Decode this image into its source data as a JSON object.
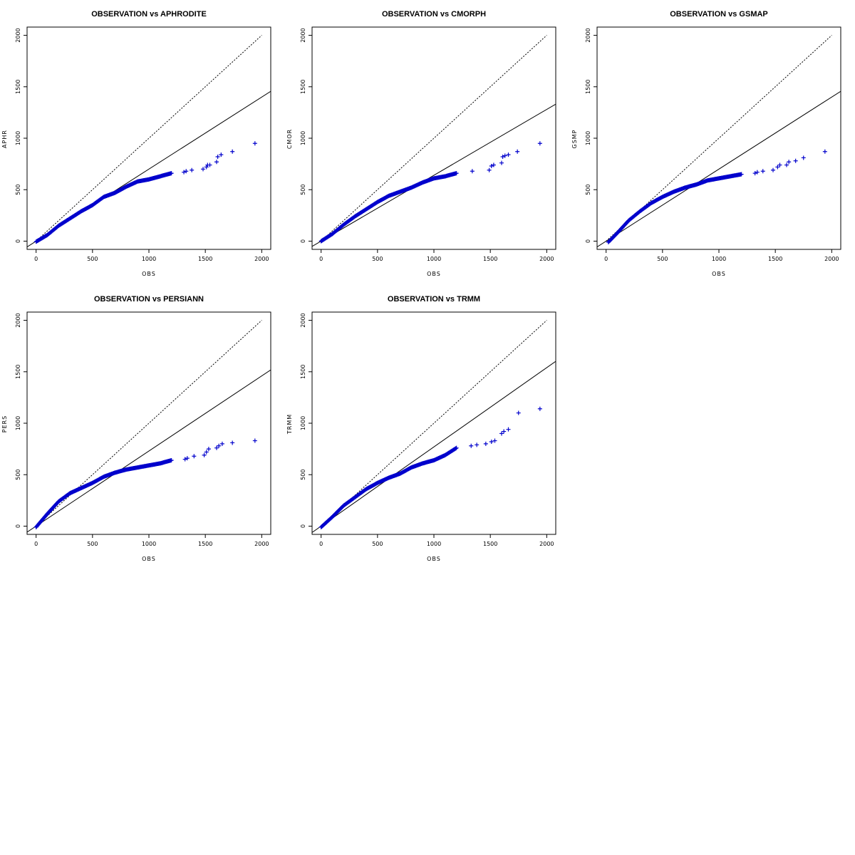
{
  "colors": {
    "points": "#0000cc",
    "lines": "#000000",
    "background": "#ffffff"
  },
  "chart_data": [
    {
      "type": "scatter",
      "title": "OBSERVATION vs APHRODITE",
      "xlabel": "OBS",
      "ylabel": "APHR",
      "xlim": [
        -80,
        2080
      ],
      "ylim": [
        -80,
        2080
      ],
      "xticks": [
        0,
        500,
        1000,
        1500,
        2000
      ],
      "yticks": [
        0,
        500,
        1000,
        1500,
        2000
      ],
      "marker": "+",
      "reference_line": {
        "style": "dotted",
        "from": [
          0,
          0
        ],
        "to": [
          2000,
          2000
        ]
      },
      "fit_line": {
        "style": "solid",
        "intercept": 0,
        "slope": 0.7
      },
      "quantile_curve": [
        [
          0,
          -5
        ],
        [
          100,
          60
        ],
        [
          200,
          150
        ],
        [
          300,
          220
        ],
        [
          400,
          290
        ],
        [
          500,
          350
        ],
        [
          600,
          430
        ],
        [
          700,
          470
        ],
        [
          800,
          530
        ],
        [
          900,
          580
        ],
        [
          1000,
          600
        ],
        [
          1100,
          630
        ],
        [
          1200,
          660
        ]
      ],
      "points": [
        [
          1310,
          670
        ],
        [
          1330,
          680
        ],
        [
          1380,
          690
        ],
        [
          1480,
          700
        ],
        [
          1510,
          720
        ],
        [
          1520,
          740
        ],
        [
          1540,
          740
        ],
        [
          1600,
          770
        ],
        [
          1610,
          820
        ],
        [
          1640,
          840
        ],
        [
          1740,
          870
        ],
        [
          1940,
          950
        ]
      ]
    },
    {
      "type": "scatter",
      "title": "OBSERVATION vs CMORPH",
      "xlabel": "OBS",
      "ylabel": "CMOR",
      "xlim": [
        -80,
        2080
      ],
      "ylim": [
        -80,
        2080
      ],
      "xticks": [
        0,
        500,
        1000,
        1500,
        2000
      ],
      "yticks": [
        0,
        500,
        1000,
        1500,
        2000
      ],
      "marker": "+",
      "reference_line": {
        "style": "dotted",
        "from": [
          0,
          0
        ],
        "to": [
          2000,
          2000
        ]
      },
      "fit_line": {
        "style": "solid",
        "intercept": 0,
        "slope": 0.64
      },
      "quantile_curve": [
        [
          0,
          0
        ],
        [
          100,
          70
        ],
        [
          200,
          160
        ],
        [
          300,
          240
        ],
        [
          400,
          310
        ],
        [
          500,
          380
        ],
        [
          600,
          440
        ],
        [
          700,
          480
        ],
        [
          800,
          520
        ],
        [
          900,
          570
        ],
        [
          1000,
          610
        ],
        [
          1100,
          630
        ],
        [
          1200,
          660
        ]
      ],
      "points": [
        [
          1340,
          680
        ],
        [
          1490,
          690
        ],
        [
          1510,
          730
        ],
        [
          1530,
          740
        ],
        [
          1600,
          760
        ],
        [
          1610,
          820
        ],
        [
          1630,
          830
        ],
        [
          1660,
          840
        ],
        [
          1740,
          870
        ],
        [
          1940,
          950
        ]
      ]
    },
    {
      "type": "scatter",
      "title": "OBSERVATION vs GSMAP",
      "xlabel": "OBS",
      "ylabel": "GSMP",
      "xlim": [
        -80,
        2080
      ],
      "ylim": [
        -80,
        2080
      ],
      "xticks": [
        0,
        500,
        1000,
        1500,
        2000
      ],
      "yticks": [
        0,
        500,
        1000,
        1500,
        2000
      ],
      "marker": "+",
      "reference_line": {
        "style": "dotted",
        "from": [
          0,
          0
        ],
        "to": [
          2000,
          2000
        ]
      },
      "fit_line": {
        "style": "solid",
        "intercept": 0,
        "slope": 0.7
      },
      "quantile_curve": [
        [
          20,
          -10
        ],
        [
          100,
          80
        ],
        [
          200,
          200
        ],
        [
          300,
          290
        ],
        [
          400,
          370
        ],
        [
          500,
          430
        ],
        [
          600,
          480
        ],
        [
          700,
          520
        ],
        [
          800,
          550
        ],
        [
          900,
          590
        ],
        [
          1000,
          610
        ],
        [
          1100,
          630
        ],
        [
          1200,
          650
        ]
      ],
      "points": [
        [
          1320,
          660
        ],
        [
          1340,
          670
        ],
        [
          1390,
          680
        ],
        [
          1480,
          690
        ],
        [
          1520,
          720
        ],
        [
          1540,
          740
        ],
        [
          1600,
          740
        ],
        [
          1620,
          770
        ],
        [
          1680,
          780
        ],
        [
          1750,
          810
        ],
        [
          1940,
          870
        ]
      ]
    },
    {
      "type": "scatter",
      "title": "OBSERVATION vs PERSIANN",
      "xlabel": "OBS",
      "ylabel": "PERS",
      "xlim": [
        -80,
        2080
      ],
      "ylim": [
        -80,
        2080
      ],
      "xticks": [
        0,
        500,
        1000,
        1500,
        2000
      ],
      "yticks": [
        0,
        500,
        1000,
        1500,
        2000
      ],
      "marker": "+",
      "reference_line": {
        "style": "dotted",
        "from": [
          0,
          0
        ],
        "to": [
          2000,
          2000
        ]
      },
      "fit_line": {
        "style": "solid",
        "intercept": 0,
        "slope": 0.73
      },
      "quantile_curve": [
        [
          0,
          -10
        ],
        [
          100,
          120
        ],
        [
          200,
          240
        ],
        [
          300,
          320
        ],
        [
          400,
          370
        ],
        [
          500,
          420
        ],
        [
          600,
          480
        ],
        [
          700,
          520
        ],
        [
          800,
          550
        ],
        [
          900,
          570
        ],
        [
          1000,
          590
        ],
        [
          1100,
          610
        ],
        [
          1200,
          640
        ]
      ],
      "points": [
        [
          1320,
          650
        ],
        [
          1340,
          660
        ],
        [
          1400,
          680
        ],
        [
          1490,
          690
        ],
        [
          1510,
          720
        ],
        [
          1530,
          750
        ],
        [
          1600,
          760
        ],
        [
          1620,
          780
        ],
        [
          1650,
          800
        ],
        [
          1740,
          810
        ],
        [
          1940,
          830
        ]
      ]
    },
    {
      "type": "scatter",
      "title": "OBSERVATION vs TRMM",
      "xlabel": "OBS",
      "ylabel": "TRMM",
      "xlim": [
        -80,
        2080
      ],
      "ylim": [
        -80,
        2080
      ],
      "xticks": [
        0,
        500,
        1000,
        1500,
        2000
      ],
      "yticks": [
        0,
        500,
        1000,
        1500,
        2000
      ],
      "marker": "+",
      "reference_line": {
        "style": "dotted",
        "from": [
          0,
          0
        ],
        "to": [
          2000,
          2000
        ]
      },
      "fit_line": {
        "style": "solid",
        "intercept": 0,
        "slope": 0.77
      },
      "quantile_curve": [
        [
          0,
          -10
        ],
        [
          100,
          90
        ],
        [
          200,
          200
        ],
        [
          300,
          280
        ],
        [
          400,
          360
        ],
        [
          500,
          420
        ],
        [
          600,
          470
        ],
        [
          700,
          510
        ],
        [
          800,
          570
        ],
        [
          900,
          610
        ],
        [
          1000,
          640
        ],
        [
          1100,
          690
        ],
        [
          1200,
          760
        ]
      ],
      "points": [
        [
          1330,
          780
        ],
        [
          1380,
          790
        ],
        [
          1460,
          800
        ],
        [
          1510,
          820
        ],
        [
          1540,
          830
        ],
        [
          1600,
          900
        ],
        [
          1620,
          920
        ],
        [
          1660,
          940
        ],
        [
          1750,
          1100
        ],
        [
          1940,
          1140
        ]
      ]
    }
  ]
}
